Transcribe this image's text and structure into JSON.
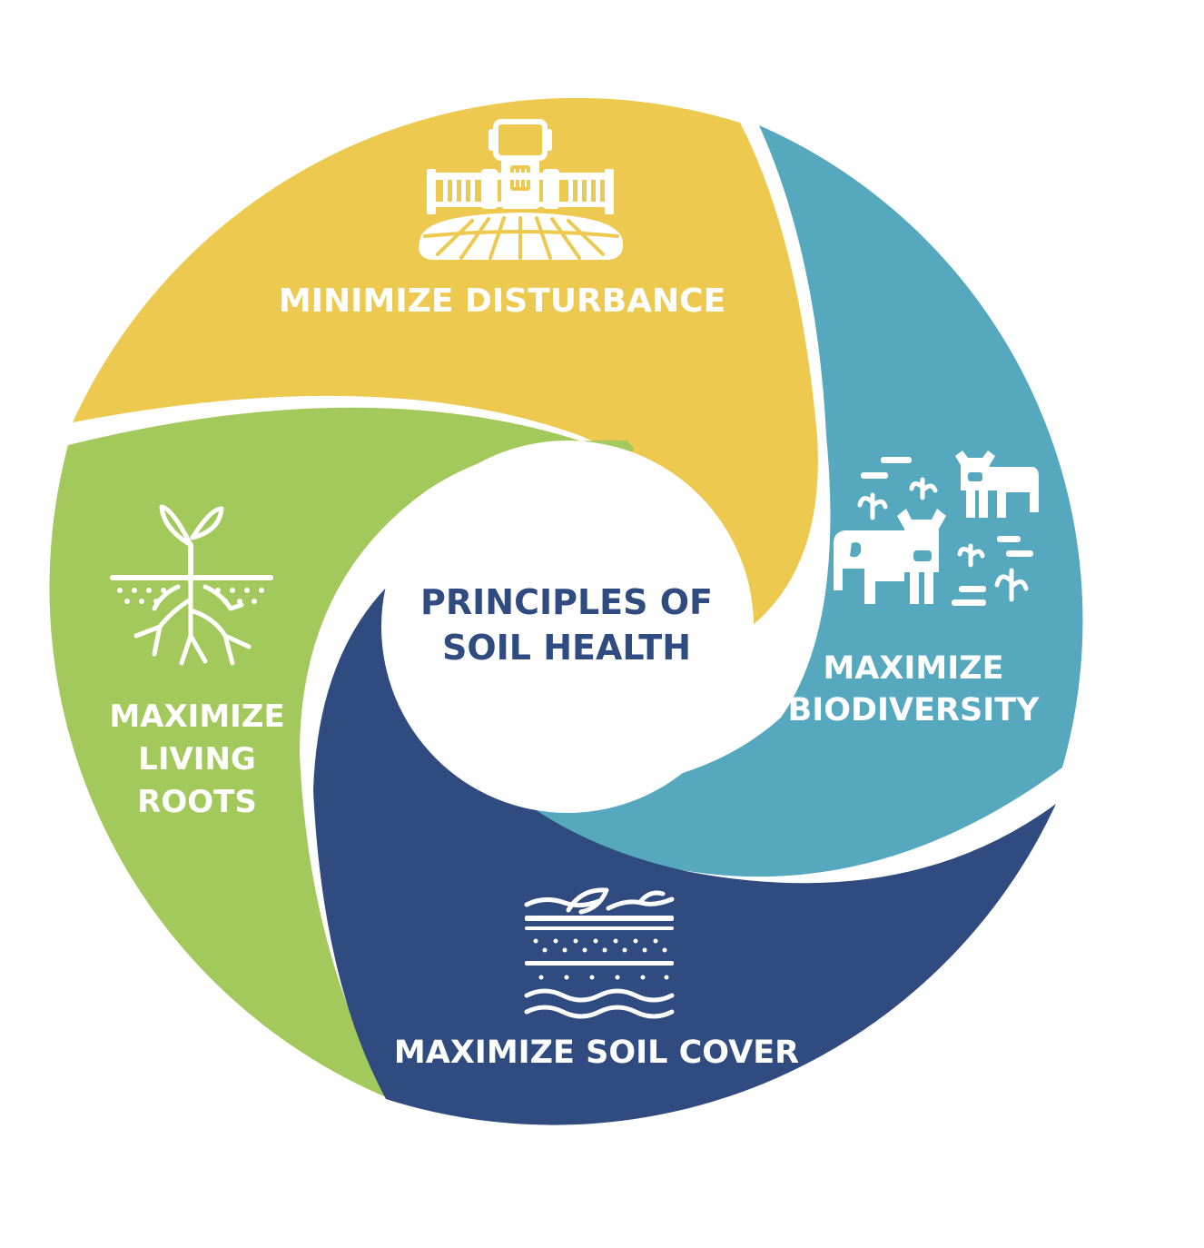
{
  "center": {
    "line1": "PRINCIPLES OF",
    "line2": "SOIL HEALTH"
  },
  "segments": [
    {
      "id": "minimize-disturbance",
      "lines": [
        "MINIMIZE DISTURBANCE"
      ],
      "color": "#EEC94F",
      "icon": "tractor-icon"
    },
    {
      "id": "maximize-biodiversity",
      "lines": [
        "MAXIMIZE",
        "BIODIVERSITY"
      ],
      "color": "#55A8BE",
      "icon": "livestock-icon"
    },
    {
      "id": "maximize-soil-cover",
      "lines": [
        "MAXIMIZE SOIL COVER"
      ],
      "color": "#2F4B80",
      "icon": "soil-cover-icon"
    },
    {
      "id": "maximize-living-roots",
      "lines": [
        "MAXIMIZE",
        "LIVING",
        "ROOTS"
      ],
      "color": "#A3C95C",
      "icon": "sprout-roots-icon"
    }
  ],
  "colors": {
    "center_text": "#2F4B80",
    "background": "#FFFFFF"
  }
}
